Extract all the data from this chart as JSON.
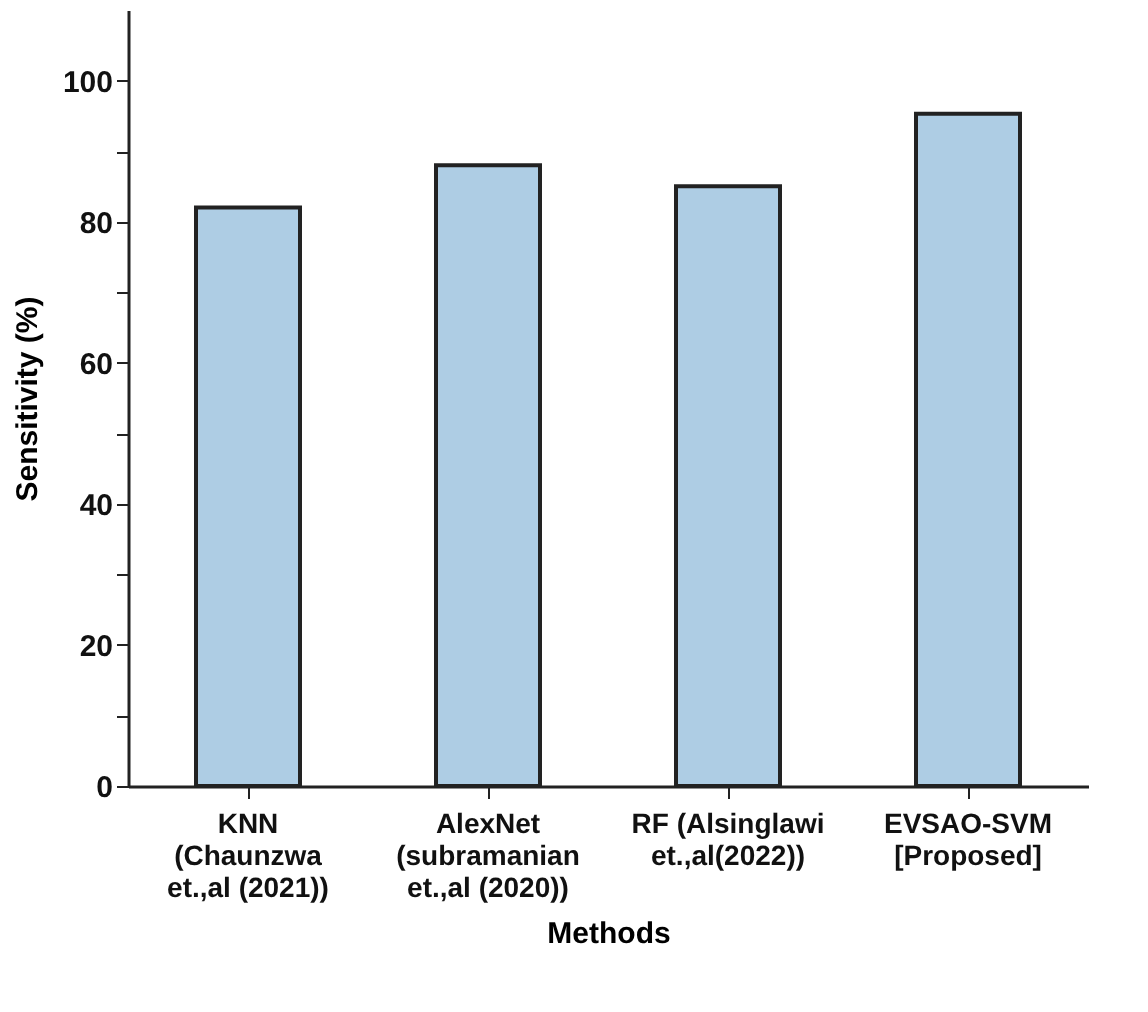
{
  "chart_data": {
    "type": "bar",
    "xlabel": "Methods",
    "ylabel": "Sensitivity (%)",
    "categories": [
      "KNN\n(Chaunzwa\net.,al (2021))",
      "AlexNet\n(subramanian\net.,al (2020))",
      "RF (Alsinglawi\net.,al(2022))",
      "EVSAO-SVM\n[Proposed]"
    ],
    "values": [
      82,
      88,
      85,
      95.3
    ],
    "color": "#aecde4",
    "ylim": [
      0,
      110
    ],
    "yticks": [
      0,
      {
        "value": 10,
        "label": null
      },
      20,
      {
        "value": 30,
        "label": null
      },
      40,
      {
        "value": 50,
        "label": null
      },
      60,
      {
        "value": 70,
        "label": null
      },
      80,
      {
        "value": 90,
        "label": null
      },
      100
    ],
    "grid": false
  }
}
